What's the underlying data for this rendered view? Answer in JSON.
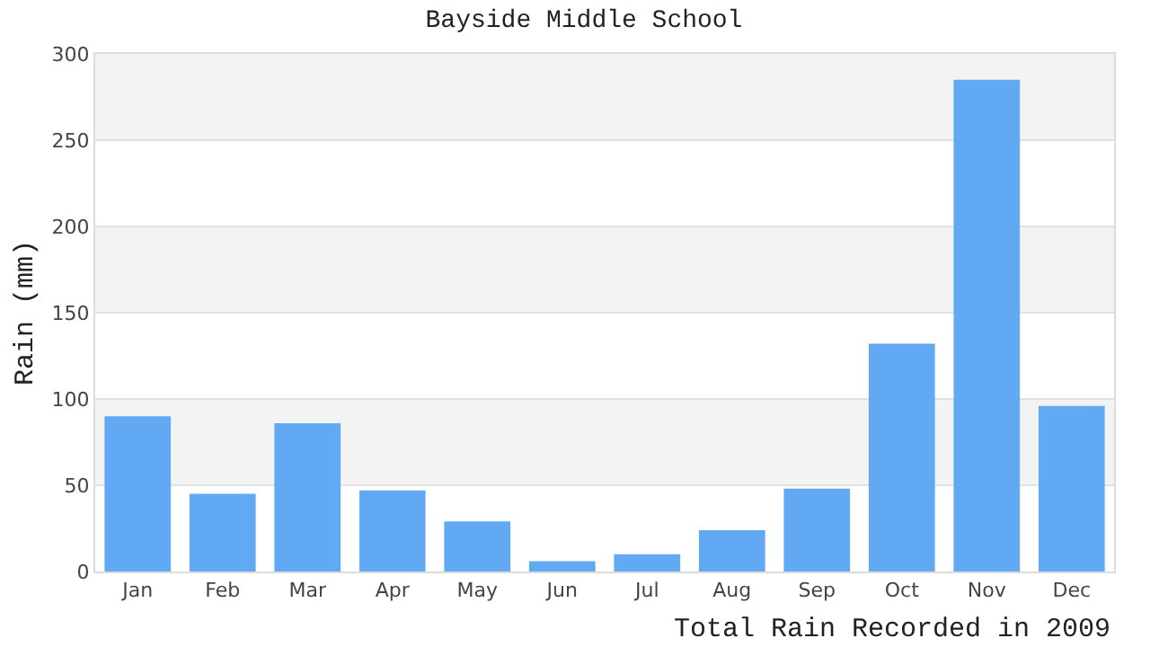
{
  "chart_data": {
    "type": "bar",
    "title": "Bayside Middle School",
    "xlabel": "Total Rain Recorded in 2009",
    "ylabel": "Rain (mm)",
    "categories": [
      "Jan",
      "Feb",
      "Mar",
      "Apr",
      "May",
      "Jun",
      "Jul",
      "Aug",
      "Sep",
      "Oct",
      "Nov",
      "Dec"
    ],
    "values": [
      90,
      45,
      86,
      47,
      29,
      6,
      10,
      24,
      48,
      132,
      285,
      96
    ],
    "color": "#62a9f4",
    "ylim": [
      0,
      300
    ],
    "yticks": [
      0,
      50,
      100,
      150,
      200,
      250,
      300
    ],
    "grid": "y"
  }
}
